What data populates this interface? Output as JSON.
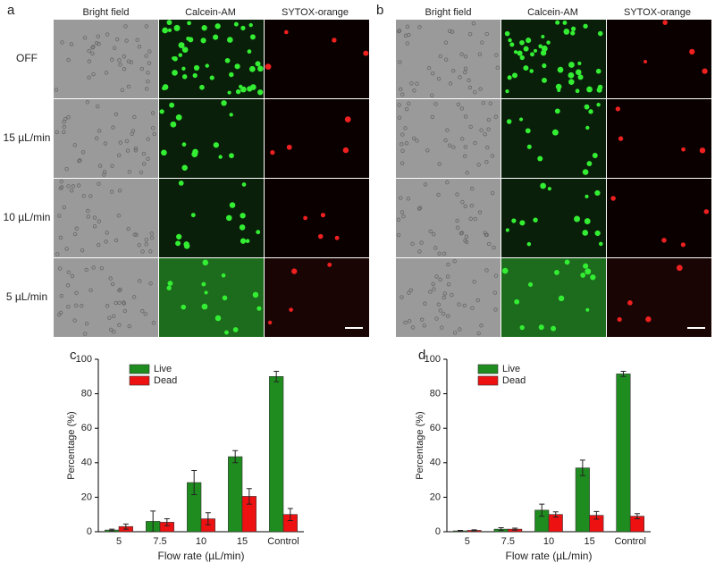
{
  "image_panels": [
    {
      "label": "a",
      "columns": [
        "Bright field",
        "Calcein-AM",
        "SYTOX-orange"
      ],
      "rows": [
        "OFF",
        "15 µL/min",
        "10 µL/min",
        "5 µL/min"
      ]
    },
    {
      "label": "b",
      "columns": [
        "Bright field",
        "Calcein-AM",
        "SYTOX-orange"
      ]
    }
  ],
  "chart_data": [
    {
      "type": "bar",
      "panel_label": "c",
      "categories": [
        "5",
        "7.5",
        "10",
        "15",
        "Control"
      ],
      "series": [
        {
          "name": "Live",
          "color": "#1e8c1e",
          "values": [
            1,
            6,
            28.5,
            43.5,
            90
          ],
          "errors": [
            0.5,
            6,
            7,
            3.5,
            3
          ]
        },
        {
          "name": "Dead",
          "color": "#ee1111",
          "values": [
            3,
            5.5,
            7.5,
            20.5,
            10
          ],
          "errors": [
            1.5,
            2,
            3.5,
            4.5,
            3.5
          ]
        }
      ],
      "xlabel": "Flow rate (µL/min)",
      "ylabel": "Percentage (%)",
      "ylim": [
        0,
        100
      ],
      "yticks": [
        0,
        20,
        40,
        60,
        80,
        100
      ],
      "legend": "upper left"
    },
    {
      "type": "bar",
      "panel_label": "d",
      "categories": [
        "5",
        "7.5",
        "10",
        "15",
        "Control"
      ],
      "series": [
        {
          "name": "Live",
          "color": "#1e8c1e",
          "values": [
            0.5,
            1.5,
            12.5,
            37,
            91.5
          ],
          "errors": [
            0.3,
            0.8,
            3.5,
            4.5,
            1.5
          ]
        },
        {
          "name": "Dead",
          "color": "#ee1111",
          "values": [
            0.8,
            1.5,
            10,
            9.5,
            9
          ],
          "errors": [
            0.3,
            0.6,
            1.5,
            2.2,
            1.5
          ]
        }
      ],
      "xlabel": "Flow rate (µL/min)",
      "ylabel": "Percentage (%)",
      "ylim": [
        0,
        100
      ],
      "yticks": [
        0,
        20,
        40,
        60,
        80,
        100
      ],
      "legend": "upper left"
    }
  ]
}
